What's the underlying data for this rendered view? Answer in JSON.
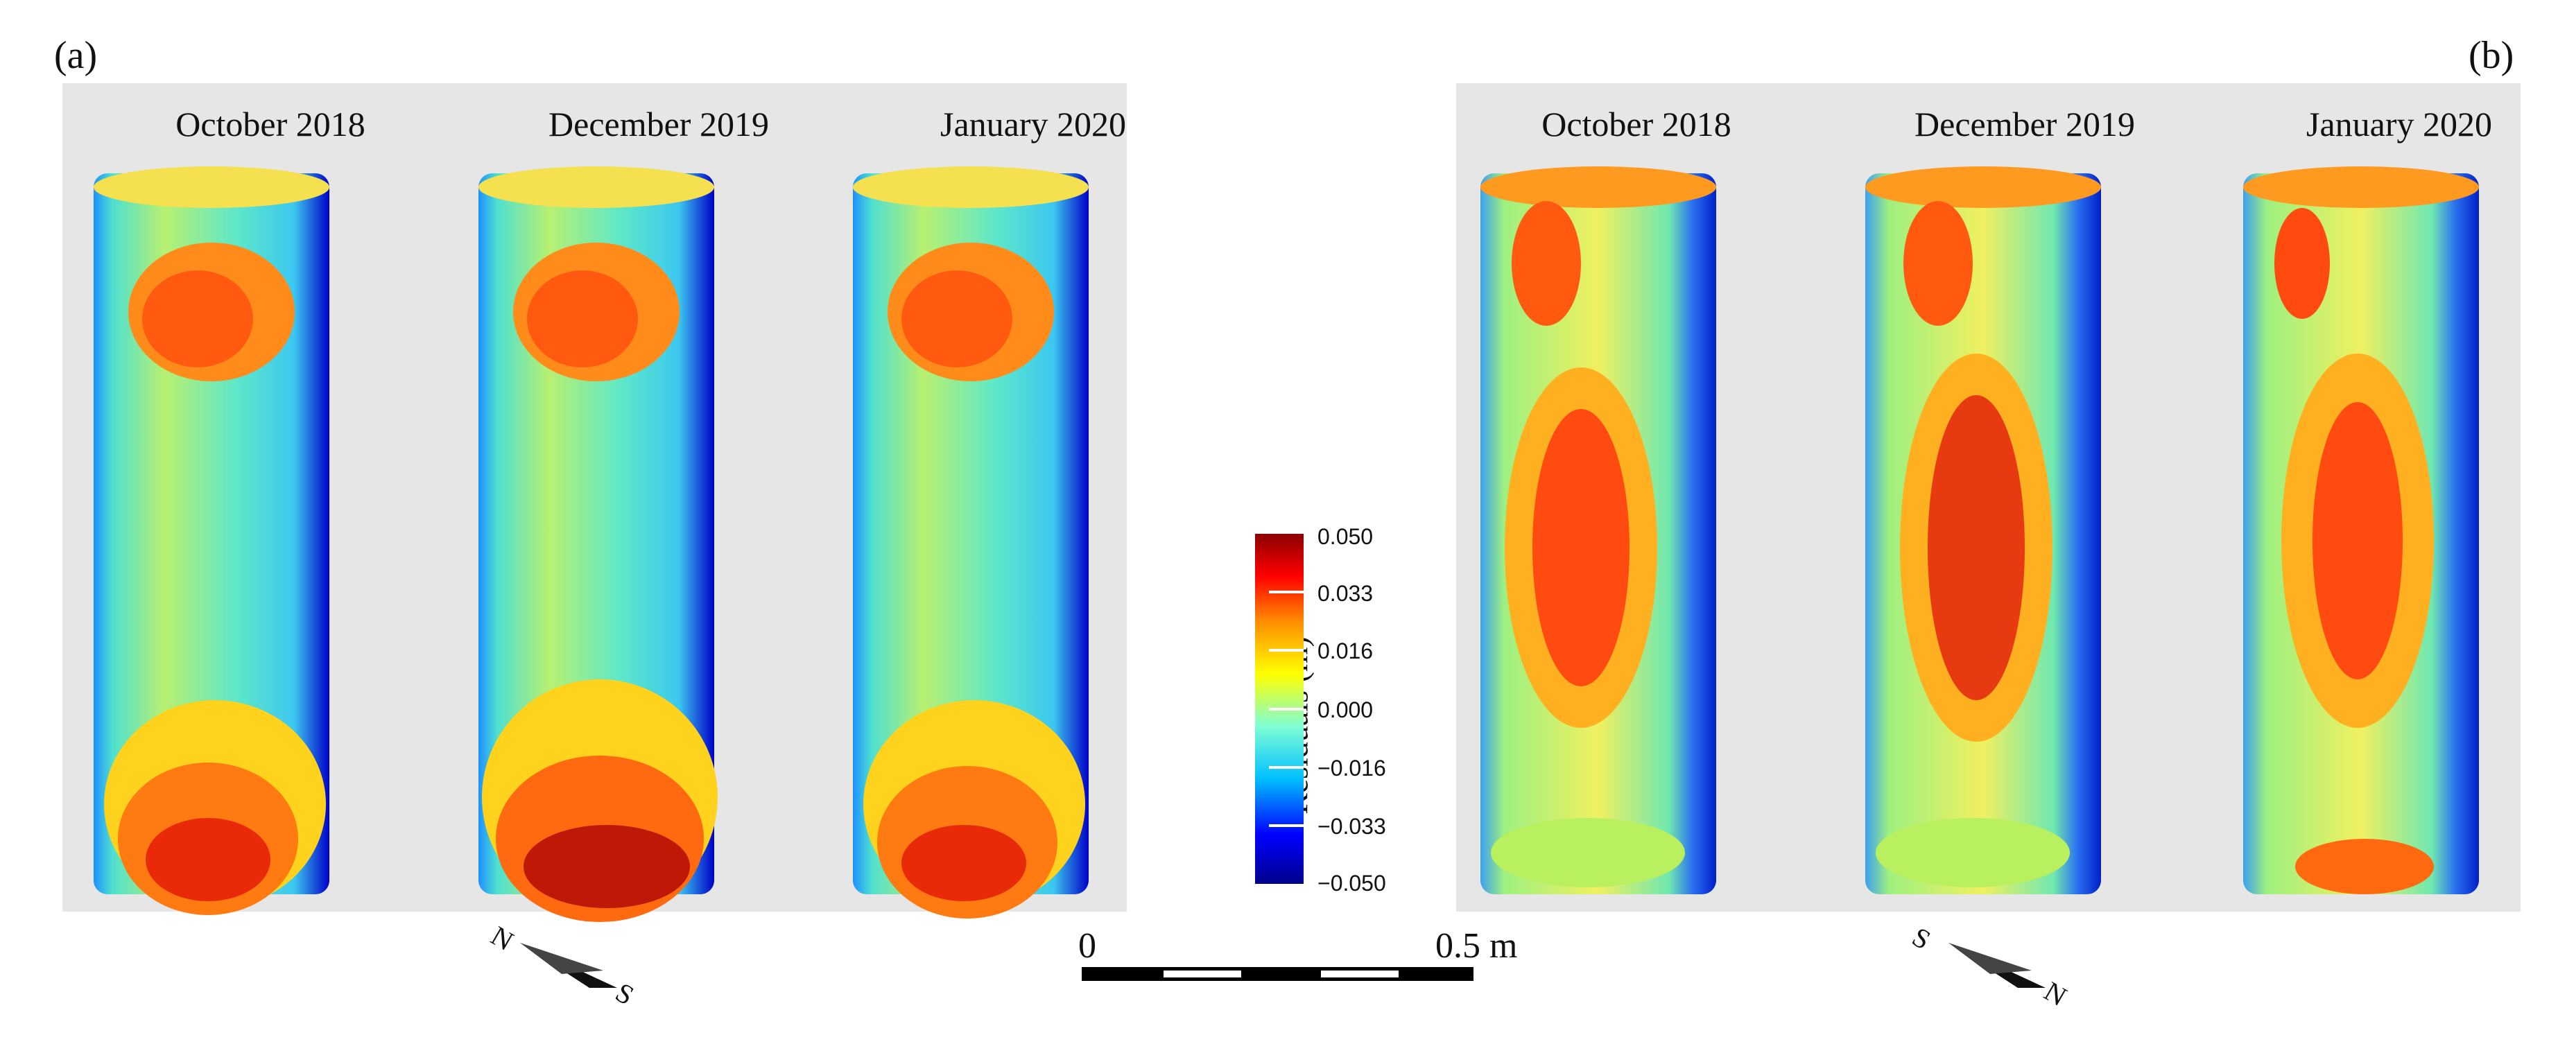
{
  "panels": [
    {
      "label": "(a)",
      "titles": [
        "October 2018",
        "December 2019",
        "January 2020"
      ]
    },
    {
      "label": "(b)",
      "titles": [
        "October 2018",
        "December 2019",
        "January 2020"
      ]
    }
  ],
  "colorbar": {
    "title": "Residuals (m)",
    "ticks": [
      "0.050",
      "0.033",
      "0.016",
      "0.000",
      "−0.016",
      "−0.033",
      "−0.050"
    ],
    "colors": [
      "#00008b",
      "#0000ff",
      "#00bfff",
      "#7fffd4",
      "#ffff00",
      "#ff8c00",
      "#ff0000",
      "#8b0000"
    ]
  },
  "scalebar": {
    "start": "0",
    "end": "0.5 m"
  },
  "orientation": [
    {
      "first": "N",
      "second": "S"
    },
    {
      "first": "S",
      "second": "N"
    }
  ]
}
